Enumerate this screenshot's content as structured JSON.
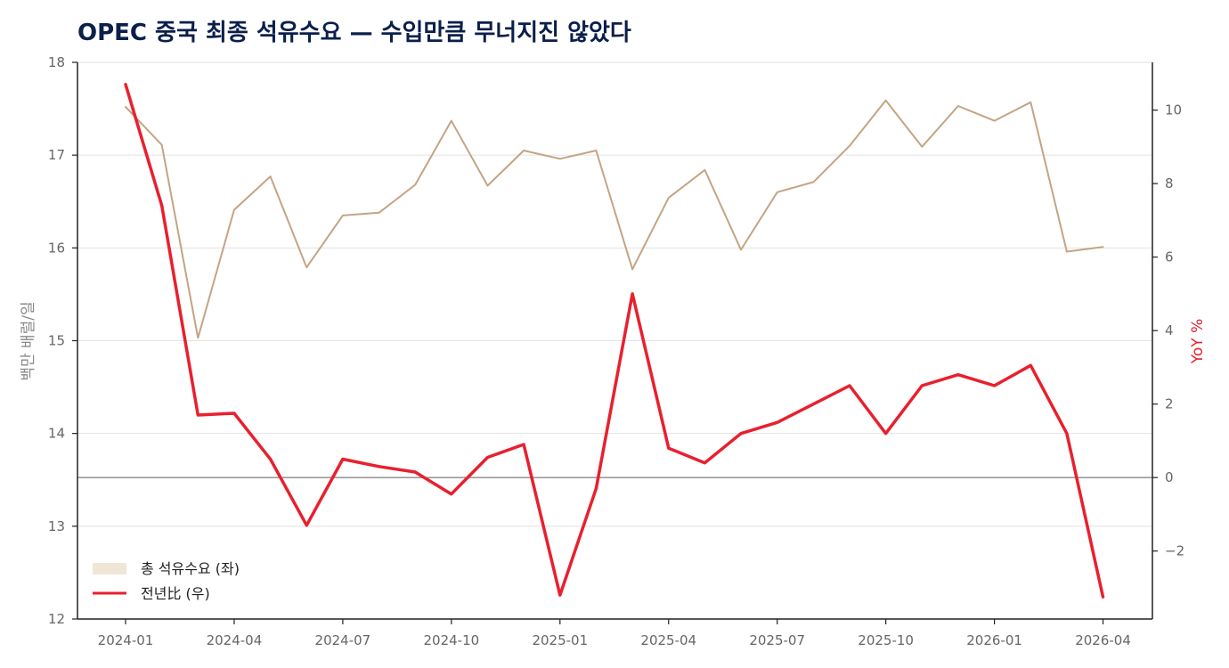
{
  "chart_data": {
    "type": "line",
    "title": "OPEC 중국 최종 석유수요 — 수입만큼 무너지진 않았다",
    "ylabel_left": "백만 배럴/일",
    "ylabel_right": "YoY %",
    "ylim_left": [
      12,
      18
    ],
    "ylim_right": [
      -3.85,
      11.3
    ],
    "yticks_left": [
      12,
      13,
      14,
      15,
      16,
      17,
      18
    ],
    "yticks_right": [
      -2,
      0,
      2,
      4,
      6,
      8,
      10
    ],
    "xtick_labels": [
      "2024-01",
      "2024-04",
      "2024-07",
      "2024-10",
      "2025-01",
      "2025-04",
      "2025-07",
      "2025-10",
      "2026-01",
      "2026-04"
    ],
    "x": [
      "2024-01",
      "2024-02",
      "2024-03",
      "2024-04",
      "2024-05",
      "2024-06",
      "2024-07",
      "2024-08",
      "2024-09",
      "2024-10",
      "2024-11",
      "2024-12",
      "2025-01",
      "2025-02",
      "2025-03",
      "2025-04",
      "2025-05",
      "2025-06",
      "2025-07",
      "2025-08",
      "2025-09",
      "2025-10",
      "2025-11",
      "2025-12",
      "2026-01",
      "2026-02",
      "2026-03",
      "2026-04"
    ],
    "grid": "horizontal",
    "legend_position": "bottom-left",
    "series": [
      {
        "name": "총 석유수요 (좌)",
        "axis": "left",
        "color": "#c4a484",
        "legend_color": "#f0e6d6",
        "values": [
          17.52,
          17.11,
          15.03,
          16.41,
          16.77,
          15.79,
          16.35,
          16.38,
          16.68,
          17.37,
          16.67,
          17.05,
          16.96,
          17.05,
          15.77,
          16.54,
          16.84,
          15.98,
          16.6,
          16.71,
          17.1,
          17.59,
          17.09,
          17.53,
          17.37,
          17.57,
          15.96,
          16.01
        ]
      },
      {
        "name": "전년比 (우)",
        "axis": "right",
        "color": "#e8202e",
        "values": [
          10.7,
          7.4,
          1.7,
          1.75,
          0.5,
          -1.3,
          0.5,
          0.3,
          0.15,
          -0.45,
          0.55,
          0.9,
          -3.2,
          -0.3,
          5.0,
          0.8,
          0.4,
          1.2,
          1.5,
          2.0,
          2.5,
          1.2,
          2.5,
          2.8,
          2.5,
          3.05,
          1.2,
          -3.25
        ]
      }
    ],
    "zero_line_right": 0
  }
}
